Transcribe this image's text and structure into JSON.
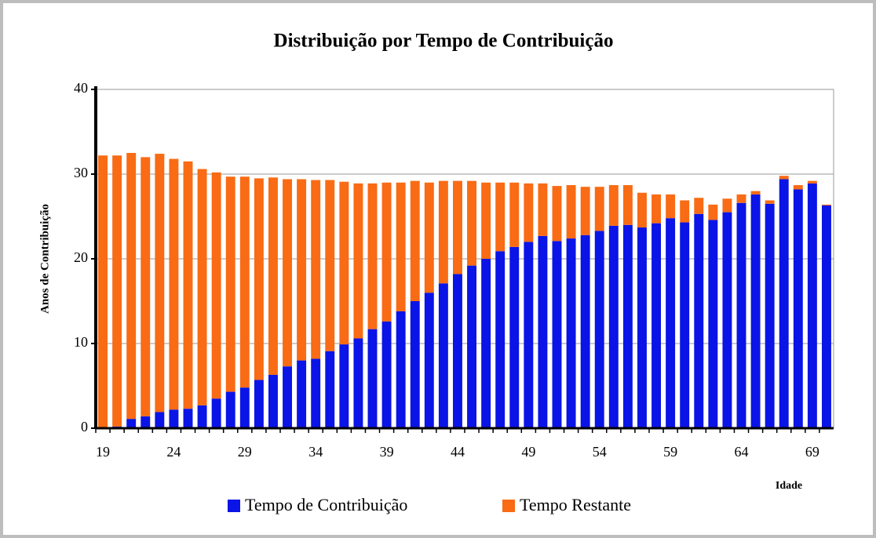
{
  "chart_data": {
    "type": "stacked_bar",
    "title": "Distribuição por Tempo de Contribuição",
    "y_label": "Anos de Contribuição",
    "x_label": "Idade",
    "categories": [
      19,
      null,
      null,
      null,
      null,
      24,
      null,
      null,
      null,
      null,
      29,
      null,
      null,
      null,
      null,
      34,
      null,
      null,
      null,
      null,
      39,
      null,
      null,
      null,
      null,
      44,
      null,
      null,
      null,
      null,
      49,
      null,
      null,
      null,
      null,
      54,
      null,
      null,
      null,
      null,
      59,
      null,
      null,
      null,
      null,
      64,
      null,
      null,
      null,
      null,
      69,
      null
    ],
    "series": [
      {
        "name": "Tempo de Contribuição",
        "color": "#0a14e6",
        "values": [
          0,
          0.2,
          1.1,
          1.4,
          1.9,
          2.2,
          2.3,
          2.7,
          3.5,
          4.3,
          4.8,
          5.7,
          6.3,
          7.3,
          8.0,
          8.2,
          9.1,
          9.9,
          10.6,
          11.7,
          12.6,
          13.8,
          15.0,
          16.0,
          17.1,
          18.2,
          19.2,
          20.0,
          20.9,
          21.4,
          22.0,
          22.7,
          22.1,
          22.4,
          22.8,
          23.3,
          23.9,
          24.0,
          23.7,
          24.2,
          24.8,
          24.3,
          25.3,
          24.6,
          25.5,
          26.6,
          27.6,
          26.5,
          29.4,
          28.2,
          28.9,
          26.3
        ]
      },
      {
        "name": "Tempo Restante",
        "color": "#f96b14",
        "values": [
          32.2,
          32.0,
          31.4,
          30.6,
          30.5,
          29.6,
          29.2,
          27.9,
          26.7,
          25.4,
          24.9,
          23.8,
          23.3,
          22.1,
          21.4,
          21.1,
          20.2,
          19.2,
          18.3,
          17.2,
          16.4,
          15.2,
          14.2,
          13.0,
          12.1,
          11.0,
          10.0,
          9.0,
          8.1,
          7.6,
          6.9,
          6.2,
          6.5,
          6.3,
          5.7,
          5.2,
          4.8,
          4.7,
          4.1,
          3.4,
          2.8,
          2.6,
          1.9,
          1.8,
          1.6,
          1.0,
          0.4,
          0.4,
          0.4,
          0.5,
          0.3,
          0.1
        ]
      }
    ],
    "ylim": [
      0,
      40
    ],
    "yticks": [
      0,
      10,
      20,
      30,
      40
    ],
    "grid": true
  }
}
